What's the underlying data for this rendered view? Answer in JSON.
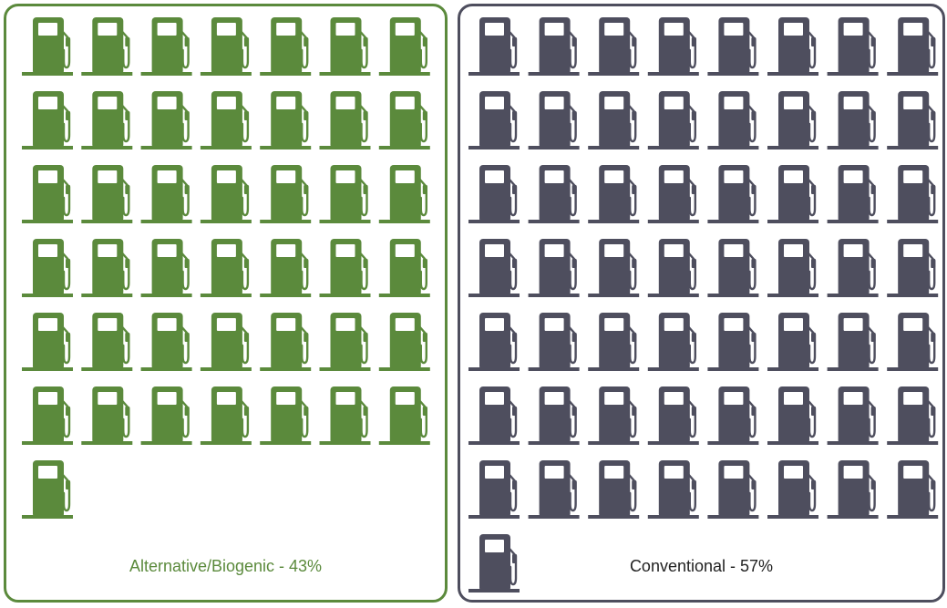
{
  "chart_data": {
    "type": "pictogram",
    "series": [
      {
        "name": "Alternative/Biogenic",
        "label": "Alternative/Biogenic - 43%",
        "percent": 43,
        "icon_count": 43,
        "color": "#5b8a3c"
      },
      {
        "name": "Conventional",
        "label": "Conventional - 57%",
        "percent": 57,
        "icon_count": 57,
        "color": "#4e4e5e"
      }
    ],
    "icon": "fuel-pump-icon"
  }
}
